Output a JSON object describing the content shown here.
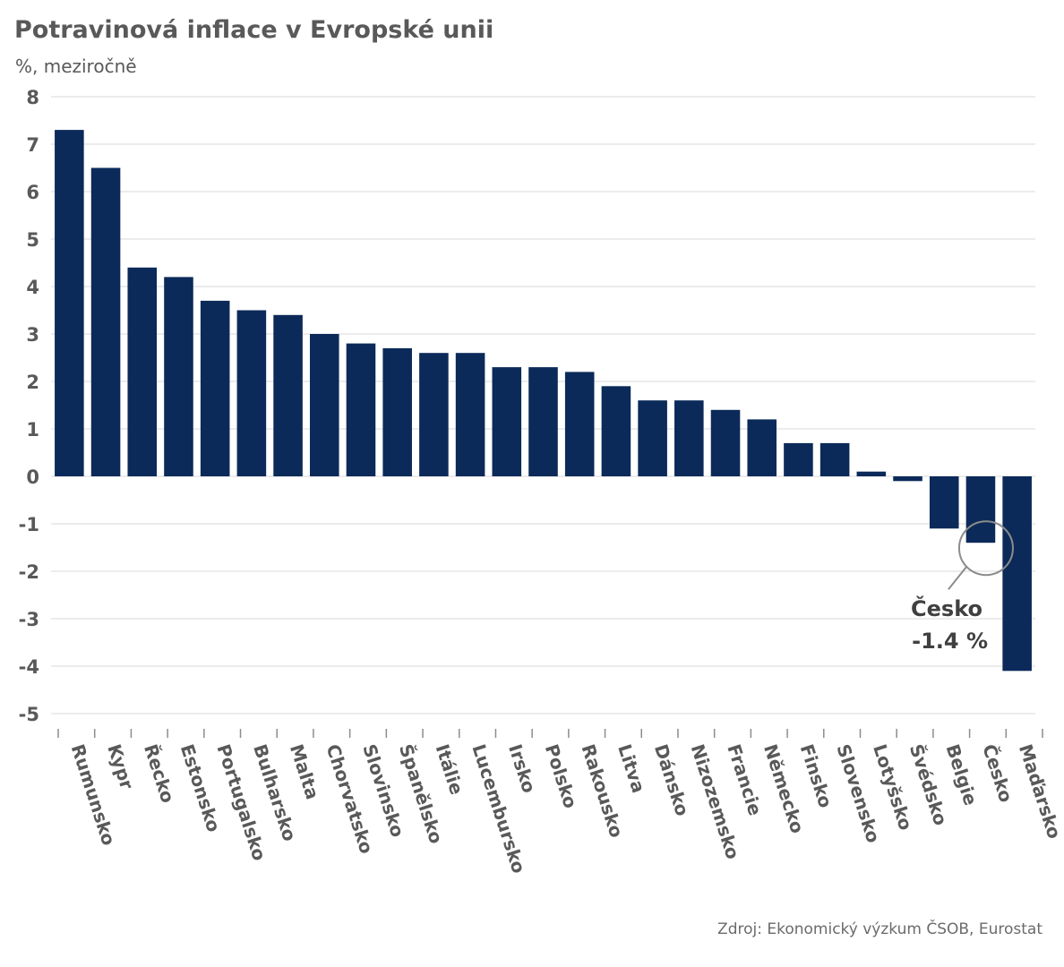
{
  "header": {
    "title": "Potravinová inflace v Evropské unii",
    "subtitle": "%, meziročně"
  },
  "footer": {
    "source": "Zdroj: Ekonomický výzkum ČSOB, Eurostat"
  },
  "colors": {
    "bar": "#0b2a59",
    "grid": "#d9d9d9",
    "text": "#595959",
    "annotation_circle": "#8c8c8c"
  },
  "chart_data": {
    "type": "bar",
    "title": "Potravinová inflace v Evropské unii",
    "ylabel": "%, meziročně",
    "xlabel": "",
    "ylim": [
      -5,
      8
    ],
    "yticks": [
      8,
      7,
      6,
      5,
      4,
      3,
      2,
      1,
      0,
      -1,
      -2,
      -3,
      -4,
      -5
    ],
    "grid": true,
    "categories": [
      "Rumunsko",
      "Kypr",
      "Řecko",
      "Estonsko",
      "Portugalsko",
      "Bulharsko",
      "Malta",
      "Chorvatsko",
      "Slovinsko",
      "Španělsko",
      "Itálie",
      "Lucembursko",
      "Irsko",
      "Polsko",
      "Rakousko",
      "Litva",
      "Dánsko",
      "Nizozemsko",
      "Francie",
      "Německo",
      "Finsko",
      "Slovensko",
      "Lotyšsko",
      "Švédsko",
      "Belgie",
      "Česko",
      "Maďarsko"
    ],
    "values": [
      7.3,
      6.5,
      4.4,
      4.2,
      3.7,
      3.5,
      3.4,
      3.0,
      2.8,
      2.7,
      2.6,
      2.6,
      2.3,
      2.3,
      2.2,
      1.9,
      1.6,
      1.6,
      1.4,
      1.2,
      0.7,
      0.7,
      0.1,
      -0.1,
      -1.1,
      -1.4,
      -4.1
    ],
    "annotation": {
      "category": "Česko",
      "line1": "Česko",
      "line2": "-1.4 %"
    }
  }
}
